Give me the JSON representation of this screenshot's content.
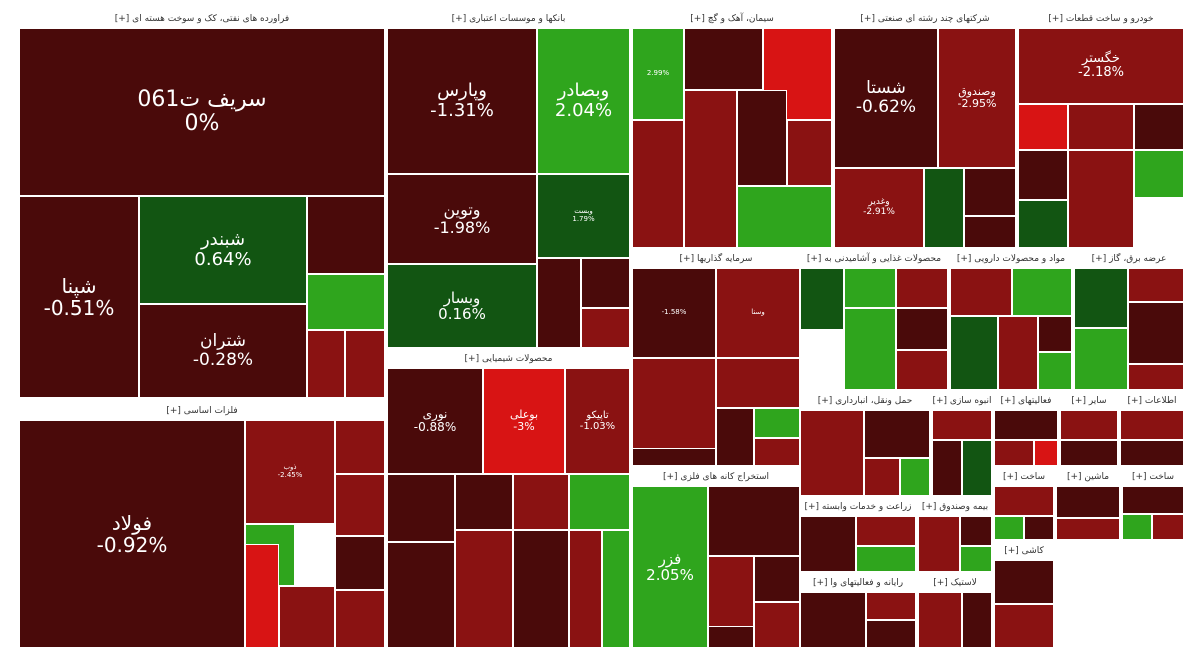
{
  "colors": {
    "dark_red": "#4a0a0a",
    "red": "#8a1212",
    "bright_red": "#d81414",
    "green": "#2fa51d",
    "dark_green": "#125512",
    "background": "#ffffff"
  },
  "chart_data": {
    "type": "heatmap",
    "sectors": [
      {
        "name": "فراورده های نفتی، کک و سوخت هسته ای [+]",
        "tiles": [
          {
            "symbol": "سریف ت061",
            "change": "0%",
            "tone": "dark_red"
          },
          {
            "symbol": "شپنا",
            "change": "-0.51%",
            "tone": "dark_red"
          },
          {
            "symbol": "شبندر",
            "change": "0.64%",
            "tone": "dark_green"
          },
          {
            "symbol": "شتران",
            "change": "-0.28%",
            "tone": "dark_red"
          },
          {
            "symbol": "",
            "change": "",
            "tone": "dark_red"
          },
          {
            "symbol": "",
            "change": "",
            "tone": "green"
          },
          {
            "symbol": "",
            "change": "",
            "tone": "red"
          },
          {
            "symbol": "",
            "change": "",
            "tone": "red"
          }
        ]
      },
      {
        "name": "فلزات اساسی [+]",
        "tiles": [
          {
            "symbol": "فولاد",
            "change": "-0.92%",
            "tone": "dark_red"
          },
          {
            "symbol": "ذوب",
            "change": "-2.45%",
            "tone": "red"
          },
          {
            "symbol": "",
            "change": "",
            "tone": "red"
          },
          {
            "symbol": "",
            "change": "",
            "tone": "green"
          },
          {
            "symbol": "",
            "change": "",
            "tone": "red"
          },
          {
            "symbol": "",
            "change": "",
            "tone": "bright_red"
          },
          {
            "symbol": "",
            "change": "",
            "tone": "red"
          },
          {
            "symbol": "",
            "change": "",
            "tone": "dark_red"
          },
          {
            "symbol": "",
            "change": "",
            "tone": "red"
          }
        ]
      },
      {
        "name": "بانکها و موسسات اعتباری [+]",
        "tiles": [
          {
            "symbol": "وپارس",
            "change": "-1.31%",
            "tone": "dark_red"
          },
          {
            "symbol": "وبصادر",
            "change": "2.04%",
            "tone": "green"
          },
          {
            "symbol": "وتوین",
            "change": "-1.98%",
            "tone": "dark_red"
          },
          {
            "symbol": "وبست",
            "change": "1.79%",
            "tone": "dark_green"
          },
          {
            "symbol": "وبسار",
            "change": "0.16%",
            "tone": "dark_green"
          },
          {
            "symbol": "",
            "change": "",
            "tone": "dark_red"
          },
          {
            "symbol": "",
            "change": "",
            "tone": "dark_red"
          },
          {
            "symbol": "",
            "change": "",
            "tone": "red"
          }
        ]
      },
      {
        "name": "محصولات شیمیایی [+]",
        "tiles": [
          {
            "symbol": "نوری",
            "change": "-0.88%",
            "tone": "dark_red"
          },
          {
            "symbol": "بوعلی",
            "change": "-3%",
            "tone": "bright_red"
          },
          {
            "symbol": "تاپیکو",
            "change": "-1.03%",
            "tone": "red"
          },
          {
            "symbol": "",
            "change": "",
            "tone": "dark_red"
          },
          {
            "symbol": "",
            "change": "",
            "tone": "dark_red"
          },
          {
            "symbol": "",
            "change": "",
            "tone": "red"
          },
          {
            "symbol": "",
            "change": "",
            "tone": "green"
          },
          {
            "symbol": "",
            "change": "",
            "tone": "dark_red"
          },
          {
            "symbol": "",
            "change": "",
            "tone": "red"
          },
          {
            "symbol": "",
            "change": "",
            "tone": "dark_red"
          },
          {
            "symbol": "",
            "change": "",
            "tone": "red"
          },
          {
            "symbol": "",
            "change": "",
            "tone": "green"
          }
        ]
      },
      {
        "name": "سیمان، آهک و گچ [+]",
        "tiles": [
          {
            "symbol": "",
            "change": "2.99%",
            "tone": "green"
          },
          {
            "symbol": "",
            "change": "",
            "tone": "dark_red"
          },
          {
            "symbol": "",
            "change": "",
            "tone": "bright_red"
          },
          {
            "symbol": "",
            "change": "",
            "tone": "red"
          },
          {
            "symbol": "",
            "change": "",
            "tone": "red"
          },
          {
            "symbol": "",
            "change": "",
            "tone": "dark_red"
          },
          {
            "symbol": "",
            "change": "",
            "tone": "red"
          },
          {
            "symbol": "",
            "change": "",
            "tone": "green"
          }
        ]
      },
      {
        "name": "شرکتهای چند رشته ای صنعتی [+]",
        "tiles": [
          {
            "symbol": "شستا",
            "change": "-0.62%",
            "tone": "dark_red"
          },
          {
            "symbol": "وصندوق",
            "change": "-2.95%",
            "tone": "red"
          },
          {
            "symbol": "وغدیر",
            "change": "-2.91%",
            "tone": "red"
          },
          {
            "symbol": "",
            "change": "",
            "tone": "dark_green"
          },
          {
            "symbol": "",
            "change": "",
            "tone": "dark_red"
          },
          {
            "symbol": "",
            "change": "",
            "tone": "dark_red"
          }
        ]
      },
      {
        "name": "خودرو و ساخت قطعات [+]",
        "tiles": [
          {
            "symbol": "خگستر",
            "change": "-2.18%",
            "tone": "red"
          },
          {
            "symbol": "",
            "change": "",
            "tone": "bright_red"
          },
          {
            "symbol": "",
            "change": "",
            "tone": "red"
          },
          {
            "symbol": "",
            "change": "",
            "tone": "dark_red"
          },
          {
            "symbol": "",
            "change": "",
            "tone": "green"
          },
          {
            "symbol": "",
            "change": "",
            "tone": "red"
          },
          {
            "symbol": "",
            "change": "",
            "tone": "dark_red"
          },
          {
            "symbol": "",
            "change": "",
            "tone": "dark_green"
          }
        ]
      },
      {
        "name": "سرمایه گذاریها [+]",
        "tiles": [
          {
            "symbol": "",
            "change": "-1.58%",
            "tone": "dark_red"
          },
          {
            "symbol": "وسنا",
            "change": "",
            "tone": "red"
          },
          {
            "symbol": "",
            "change": "",
            "tone": "red"
          },
          {
            "symbol": "",
            "change": "",
            "tone": "red"
          },
          {
            "symbol": "",
            "change": "",
            "tone": "dark_red"
          },
          {
            "symbol": "",
            "change": "",
            "tone": "green"
          },
          {
            "symbol": "",
            "change": "",
            "tone": "red"
          },
          {
            "symbol": "",
            "change": "",
            "tone": "dark_red"
          }
        ]
      },
      {
        "name": "استخراج کانه های فلزی [+]",
        "tiles": [
          {
            "symbol": "فزر",
            "change": "2.05%",
            "tone": "green"
          },
          {
            "symbol": "",
            "change": "",
            "tone": "dark_red"
          },
          {
            "symbol": "",
            "change": "",
            "tone": "red"
          },
          {
            "symbol": "",
            "change": "",
            "tone": "dark_red"
          },
          {
            "symbol": "",
            "change": "",
            "tone": "red"
          },
          {
            "symbol": "",
            "change": "",
            "tone": "dark_red"
          }
        ]
      },
      {
        "name": "محصولات غذایی و آشامیدنی به [+]",
        "tiles": [
          {
            "symbol": "",
            "change": "",
            "tone": "dark_green"
          },
          {
            "symbol": "",
            "change": "",
            "tone": "green"
          },
          {
            "symbol": "",
            "change": "",
            "tone": "red"
          },
          {
            "symbol": "",
            "change": "",
            "tone": "green"
          },
          {
            "symbol": "",
            "change": "",
            "tone": "dark_red"
          },
          {
            "symbol": "",
            "change": "",
            "tone": "red"
          }
        ]
      },
      {
        "name": "مواد و محصولات دارویی [+]",
        "tiles": [
          {
            "symbol": "",
            "change": "",
            "tone": "red"
          },
          {
            "symbol": "",
            "change": "",
            "tone": "green"
          },
          {
            "symbol": "",
            "change": "",
            "tone": "dark_green"
          },
          {
            "symbol": "",
            "change": "",
            "tone": "red"
          },
          {
            "symbol": "",
            "change": "",
            "tone": "dark_red"
          },
          {
            "symbol": "",
            "change": "",
            "tone": "green"
          }
        ]
      },
      {
        "name": "عرضه برق، گاز [+]",
        "tiles": [
          {
            "symbol": "",
            "change": "",
            "tone": "dark_green"
          },
          {
            "symbol": "",
            "change": "",
            "tone": "red"
          },
          {
            "symbol": "",
            "change": "",
            "tone": "dark_red"
          },
          {
            "symbol": "",
            "change": "",
            "tone": "green"
          },
          {
            "symbol": "",
            "change": "",
            "tone": "red"
          }
        ]
      },
      {
        "name": "حمل ونقل، انبارداری [+]",
        "tiles": [
          {
            "symbol": "",
            "change": "",
            "tone": "red"
          },
          {
            "symbol": "",
            "change": "",
            "tone": "dark_red"
          },
          {
            "symbol": "",
            "change": "",
            "tone": "red"
          },
          {
            "symbol": "",
            "change": "",
            "tone": "green"
          }
        ]
      },
      {
        "name": "انبوه سازی [+]",
        "tiles": [
          {
            "symbol": "",
            "change": "",
            "tone": "red"
          },
          {
            "symbol": "",
            "change": "",
            "tone": "dark_red"
          },
          {
            "symbol": "",
            "change": "",
            "tone": "dark_green"
          },
          {
            "symbol": "",
            "change": "",
            "tone": "red"
          }
        ]
      },
      {
        "name": "فعالیتهای [+]",
        "tiles": [
          {
            "symbol": "",
            "change": "",
            "tone": "dark_red"
          },
          {
            "symbol": "",
            "change": "",
            "tone": "red"
          },
          {
            "symbol": "",
            "change": "",
            "tone": "bright_red"
          }
        ]
      },
      {
        "name": "زراعت و خدمات وابسته [+]",
        "tiles": [
          {
            "symbol": "",
            "change": "",
            "tone": "dark_red"
          },
          {
            "symbol": "",
            "change": "",
            "tone": "red"
          },
          {
            "symbol": "",
            "change": "",
            "tone": "green"
          }
        ]
      },
      {
        "name": "بیمه وصندوق [+]",
        "tiles": [
          {
            "symbol": "",
            "change": "",
            "tone": "red"
          },
          {
            "symbol": "",
            "change": "",
            "tone": "dark_red"
          },
          {
            "symbol": "",
            "change": "",
            "tone": "green"
          }
        ]
      },
      {
        "name": "رایانه و فعالیتهای وا [+]",
        "tiles": [
          {
            "symbol": "",
            "change": "",
            "tone": "dark_red"
          },
          {
            "symbol": "",
            "change": "",
            "tone": "red"
          },
          {
            "symbol": "",
            "change": "",
            "tone": "dark_red"
          }
        ]
      },
      {
        "name": "لاستیک [+]",
        "tiles": [
          {
            "symbol": "",
            "change": "",
            "tone": "red"
          },
          {
            "symbol": "",
            "change": "",
            "tone": "dark_red"
          }
        ]
      },
      {
        "name": "ساخت [+]",
        "tiles": [
          {
            "symbol": "",
            "change": "",
            "tone": "red"
          },
          {
            "symbol": "",
            "change": "",
            "tone": "green"
          },
          {
            "symbol": "",
            "change": "",
            "tone": "dark_red"
          }
        ]
      },
      {
        "name": "ماشین [+]",
        "tiles": [
          {
            "symbol": "",
            "change": "",
            "tone": "dark_red"
          },
          {
            "symbol": "",
            "change": "",
            "tone": "red"
          }
        ]
      },
      {
        "name": "ساخت [+]",
        "tiles": [
          {
            "symbol": "",
            "change": "",
            "tone": "dark_red"
          },
          {
            "symbol": "",
            "change": "",
            "tone": "green"
          },
          {
            "symbol": "",
            "change": "",
            "tone": "red"
          }
        ]
      },
      {
        "name": "سایر [+]",
        "tiles": [
          {
            "symbol": "",
            "change": "",
            "tone": "red"
          },
          {
            "symbol": "",
            "change": "",
            "tone": "dark_red"
          }
        ]
      },
      {
        "name": "اطلاعات [+]",
        "tiles": [
          {
            "symbol": "",
            "change": "",
            "tone": "red"
          },
          {
            "symbol": "",
            "change": "",
            "tone": "dark_red"
          }
        ]
      },
      {
        "name": "کاشی [+]",
        "tiles": [
          {
            "symbol": "",
            "change": "",
            "tone": "dark_red"
          },
          {
            "symbol": "",
            "change": "",
            "tone": "red"
          }
        ]
      }
    ]
  }
}
